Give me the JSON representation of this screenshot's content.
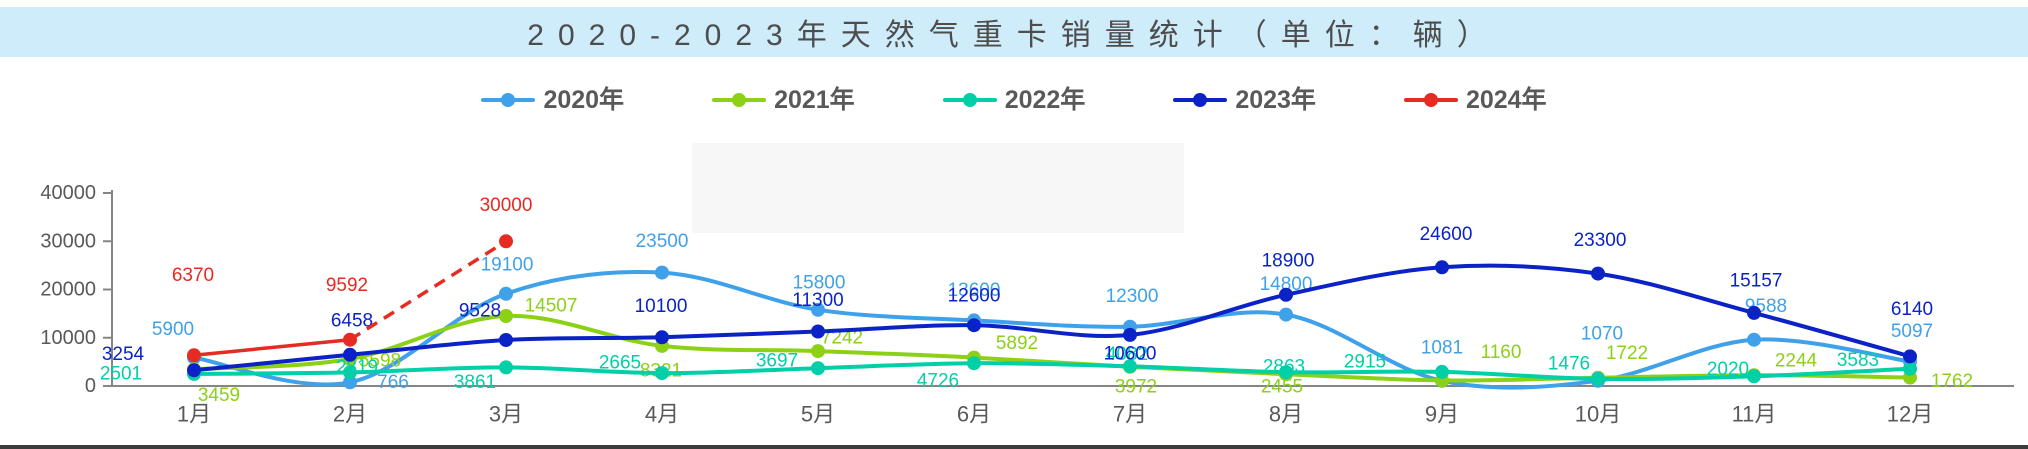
{
  "title": "2020-2023年天然气重卡销量统计（单位：辆）",
  "colors": {
    "title_bar_bg": "#CFECFA",
    "title_text": "#4D4D4D",
    "axis_text": "#595959",
    "axis_line": "#858585",
    "blur_patch": "#F7F7F7"
  },
  "chart_data": {
    "type": "line",
    "title": "2020-2023年天然气重卡销量统计（单位：辆）",
    "categories": [
      "1月",
      "2月",
      "3月",
      "4月",
      "5月",
      "6月",
      "7月",
      "8月",
      "9月",
      "10月",
      "11月",
      "12月"
    ],
    "series": [
      {
        "name": "2020年",
        "color": "#3FA1E9",
        "line_style": "solid",
        "values": [
          5900,
          766,
          19100,
          23500,
          15800,
          13600,
          12300,
          14800,
          1081,
          1070,
          9588,
          5097
        ]
      },
      {
        "name": "2021年",
        "color": "#8CD115",
        "line_style": "solid",
        "values": [
          3459,
          5598,
          14507,
          8321,
          7242,
          5892,
          3972,
          2455,
          1160,
          1722,
          2244,
          1762
        ]
      },
      {
        "name": "2022年",
        "color": "#00CFA8",
        "line_style": "solid",
        "values": [
          2501,
          2819,
          3861,
          2665,
          3697,
          4726,
          4082,
          2863,
          2915,
          1476,
          2020,
          3583
        ]
      },
      {
        "name": "2023年",
        "color": "#0B23C6",
        "line_style": "solid",
        "values": [
          3254,
          6458,
          9528,
          10100,
          11300,
          12600,
          10600,
          18900,
          24600,
          23300,
          15157,
          6140
        ]
      },
      {
        "name": "2024年",
        "color": "#E62B22",
        "line_style": "dashed",
        "values": [
          6370,
          9592,
          30000
        ]
      }
    ],
    "xlabel": "",
    "ylabel": "",
    "ylim": [
      0,
      40000
    ],
    "yticks": [
      0,
      10000,
      20000,
      30000,
      40000
    ],
    "grid": false,
    "legend_position": "top",
    "data_labels": true
  }
}
